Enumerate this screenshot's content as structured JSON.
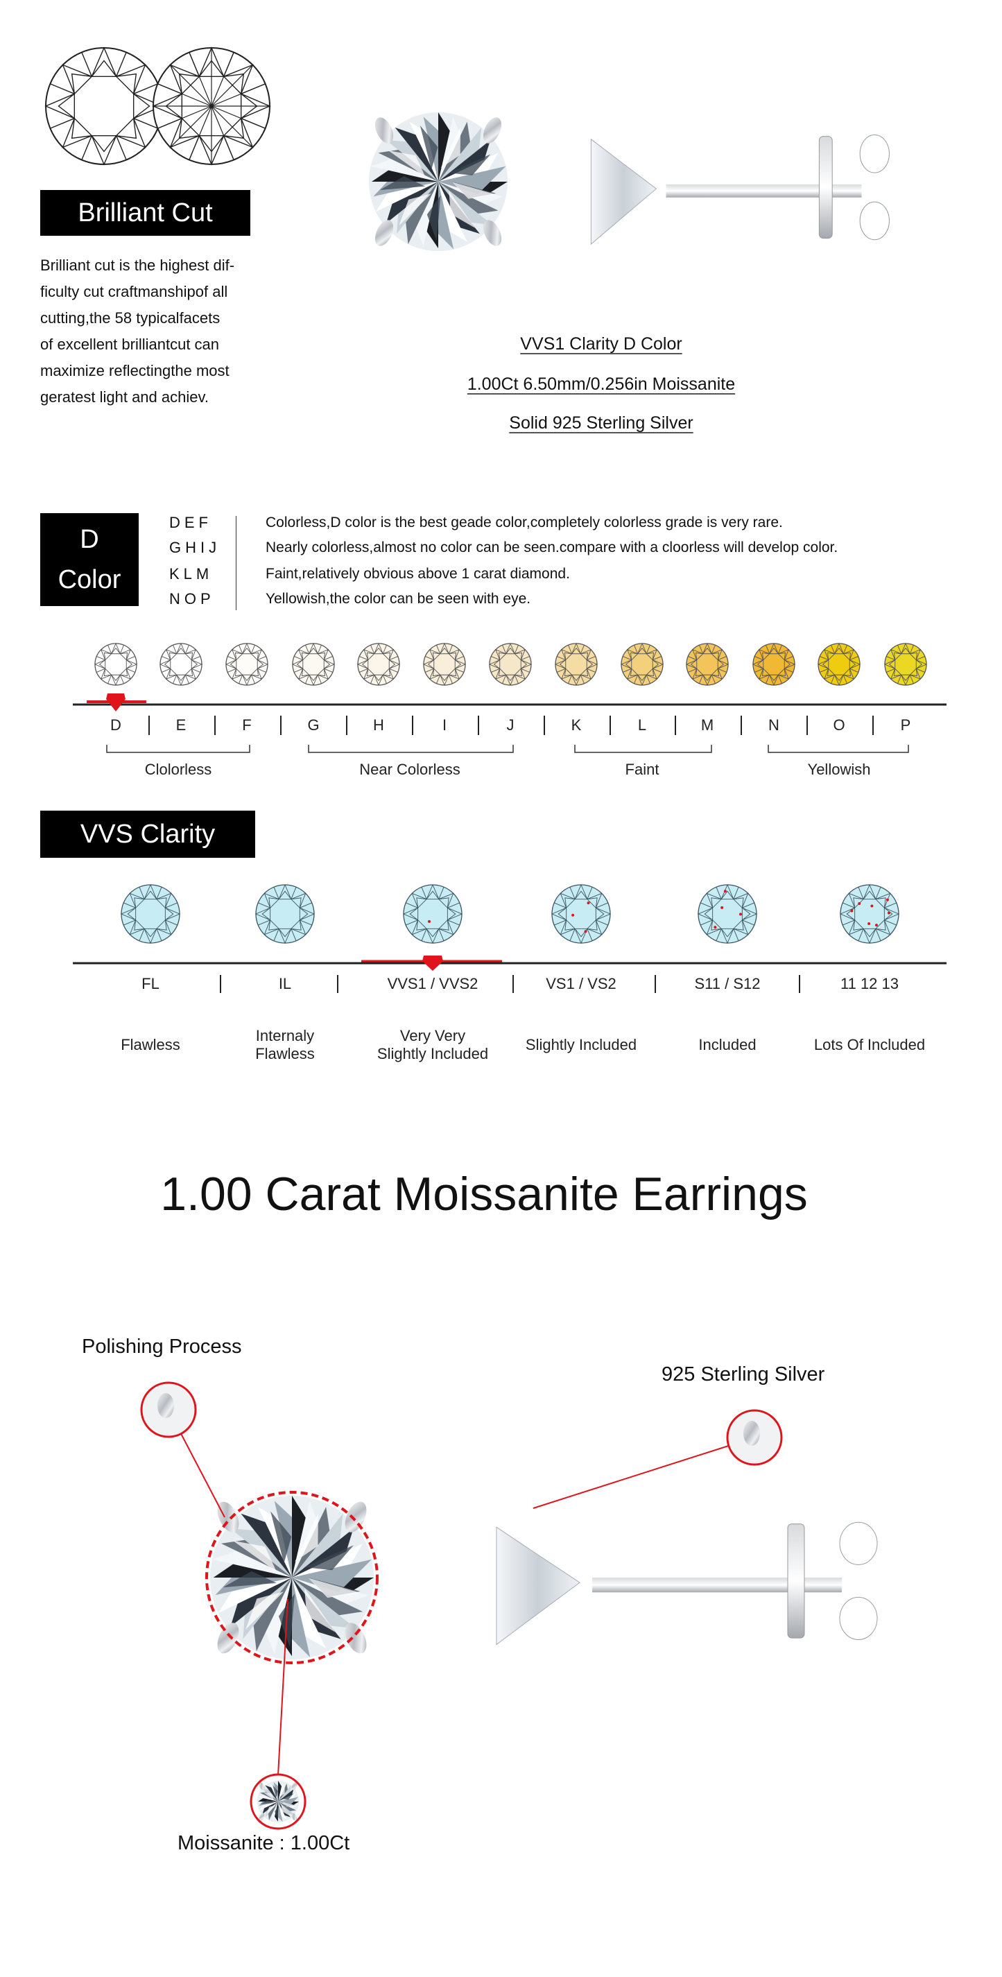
{
  "brilliant": {
    "title": "Brilliant Cut",
    "lines": [
      "Brilliant cut is the highest dif-",
      "ficulty cut craftmanshipof all",
      "cutting,the 58 typicalfacets",
      "of excellent brilliantcut can",
      "maximize reflectingthe most",
      "geratest light and achiev."
    ]
  },
  "specs": [
    "VVS1 Clarity D Color",
    "1.00Ct 6.50mm/0.256in Moissanite",
    "Solid 925 Sterling Silver"
  ],
  "color": {
    "box_line1": "D",
    "box_line2": "Color",
    "rows": [
      {
        "letters": "DEF",
        "text": "Colorless,D color is the best geade color,completely colorless grade is very rare."
      },
      {
        "letters": "GHIJ",
        "text": "Nearly colorless,almost no color can be seen.compare with a cloorless will develop color."
      },
      {
        "letters": "KLM",
        "text": "Faint,relatively obvious above 1 carat diamond."
      },
      {
        "letters": "NOP",
        "text": "Yellowish,the color can be seen with eye."
      }
    ],
    "scale": [
      "D",
      "E",
      "F",
      "G",
      "H",
      "I",
      "J",
      "K",
      "L",
      "M",
      "N",
      "O",
      "P"
    ],
    "gem_colors": [
      "#ffffff",
      "#ffffff",
      "#fdfcf9",
      "#fcf9f2",
      "#fbf5ea",
      "#f8eed9",
      "#f6e7c8",
      "#f5dca2",
      "#f3d07c",
      "#f2c45a",
      "#f1b834",
      "#f0cc10",
      "#ead822"
    ],
    "selected": "D",
    "groups": [
      "Clolorless",
      "Near Colorless",
      "Faint",
      "Yellowish"
    ]
  },
  "clarity": {
    "title": "VVS Clarity",
    "grades": [
      "FL",
      "IL",
      "VVS1 / VVS2",
      "VS1 / VS2",
      "S11 / S12",
      "11 12 13"
    ],
    "descriptions": [
      [
        "Flawless"
      ],
      [
        "Internaly",
        "Flawless"
      ],
      [
        "Very Very",
        "Slightly Included"
      ],
      [
        "Slightly Included"
      ],
      [
        "Included"
      ],
      [
        "Lots Of Included"
      ]
    ],
    "inclusions": [
      0,
      0,
      1,
      3,
      4,
      7
    ],
    "gem_color": "#c8ecf3",
    "selected": "VVS1 / VVS2"
  },
  "accent_color": "#e0141b",
  "product_title": "1.00 Carat Moissanite Earrings",
  "callouts": {
    "polishing": "Polishing Process",
    "silver": "925 Sterling Silver",
    "moissanite": "Moissanite : 1.00Ct"
  }
}
